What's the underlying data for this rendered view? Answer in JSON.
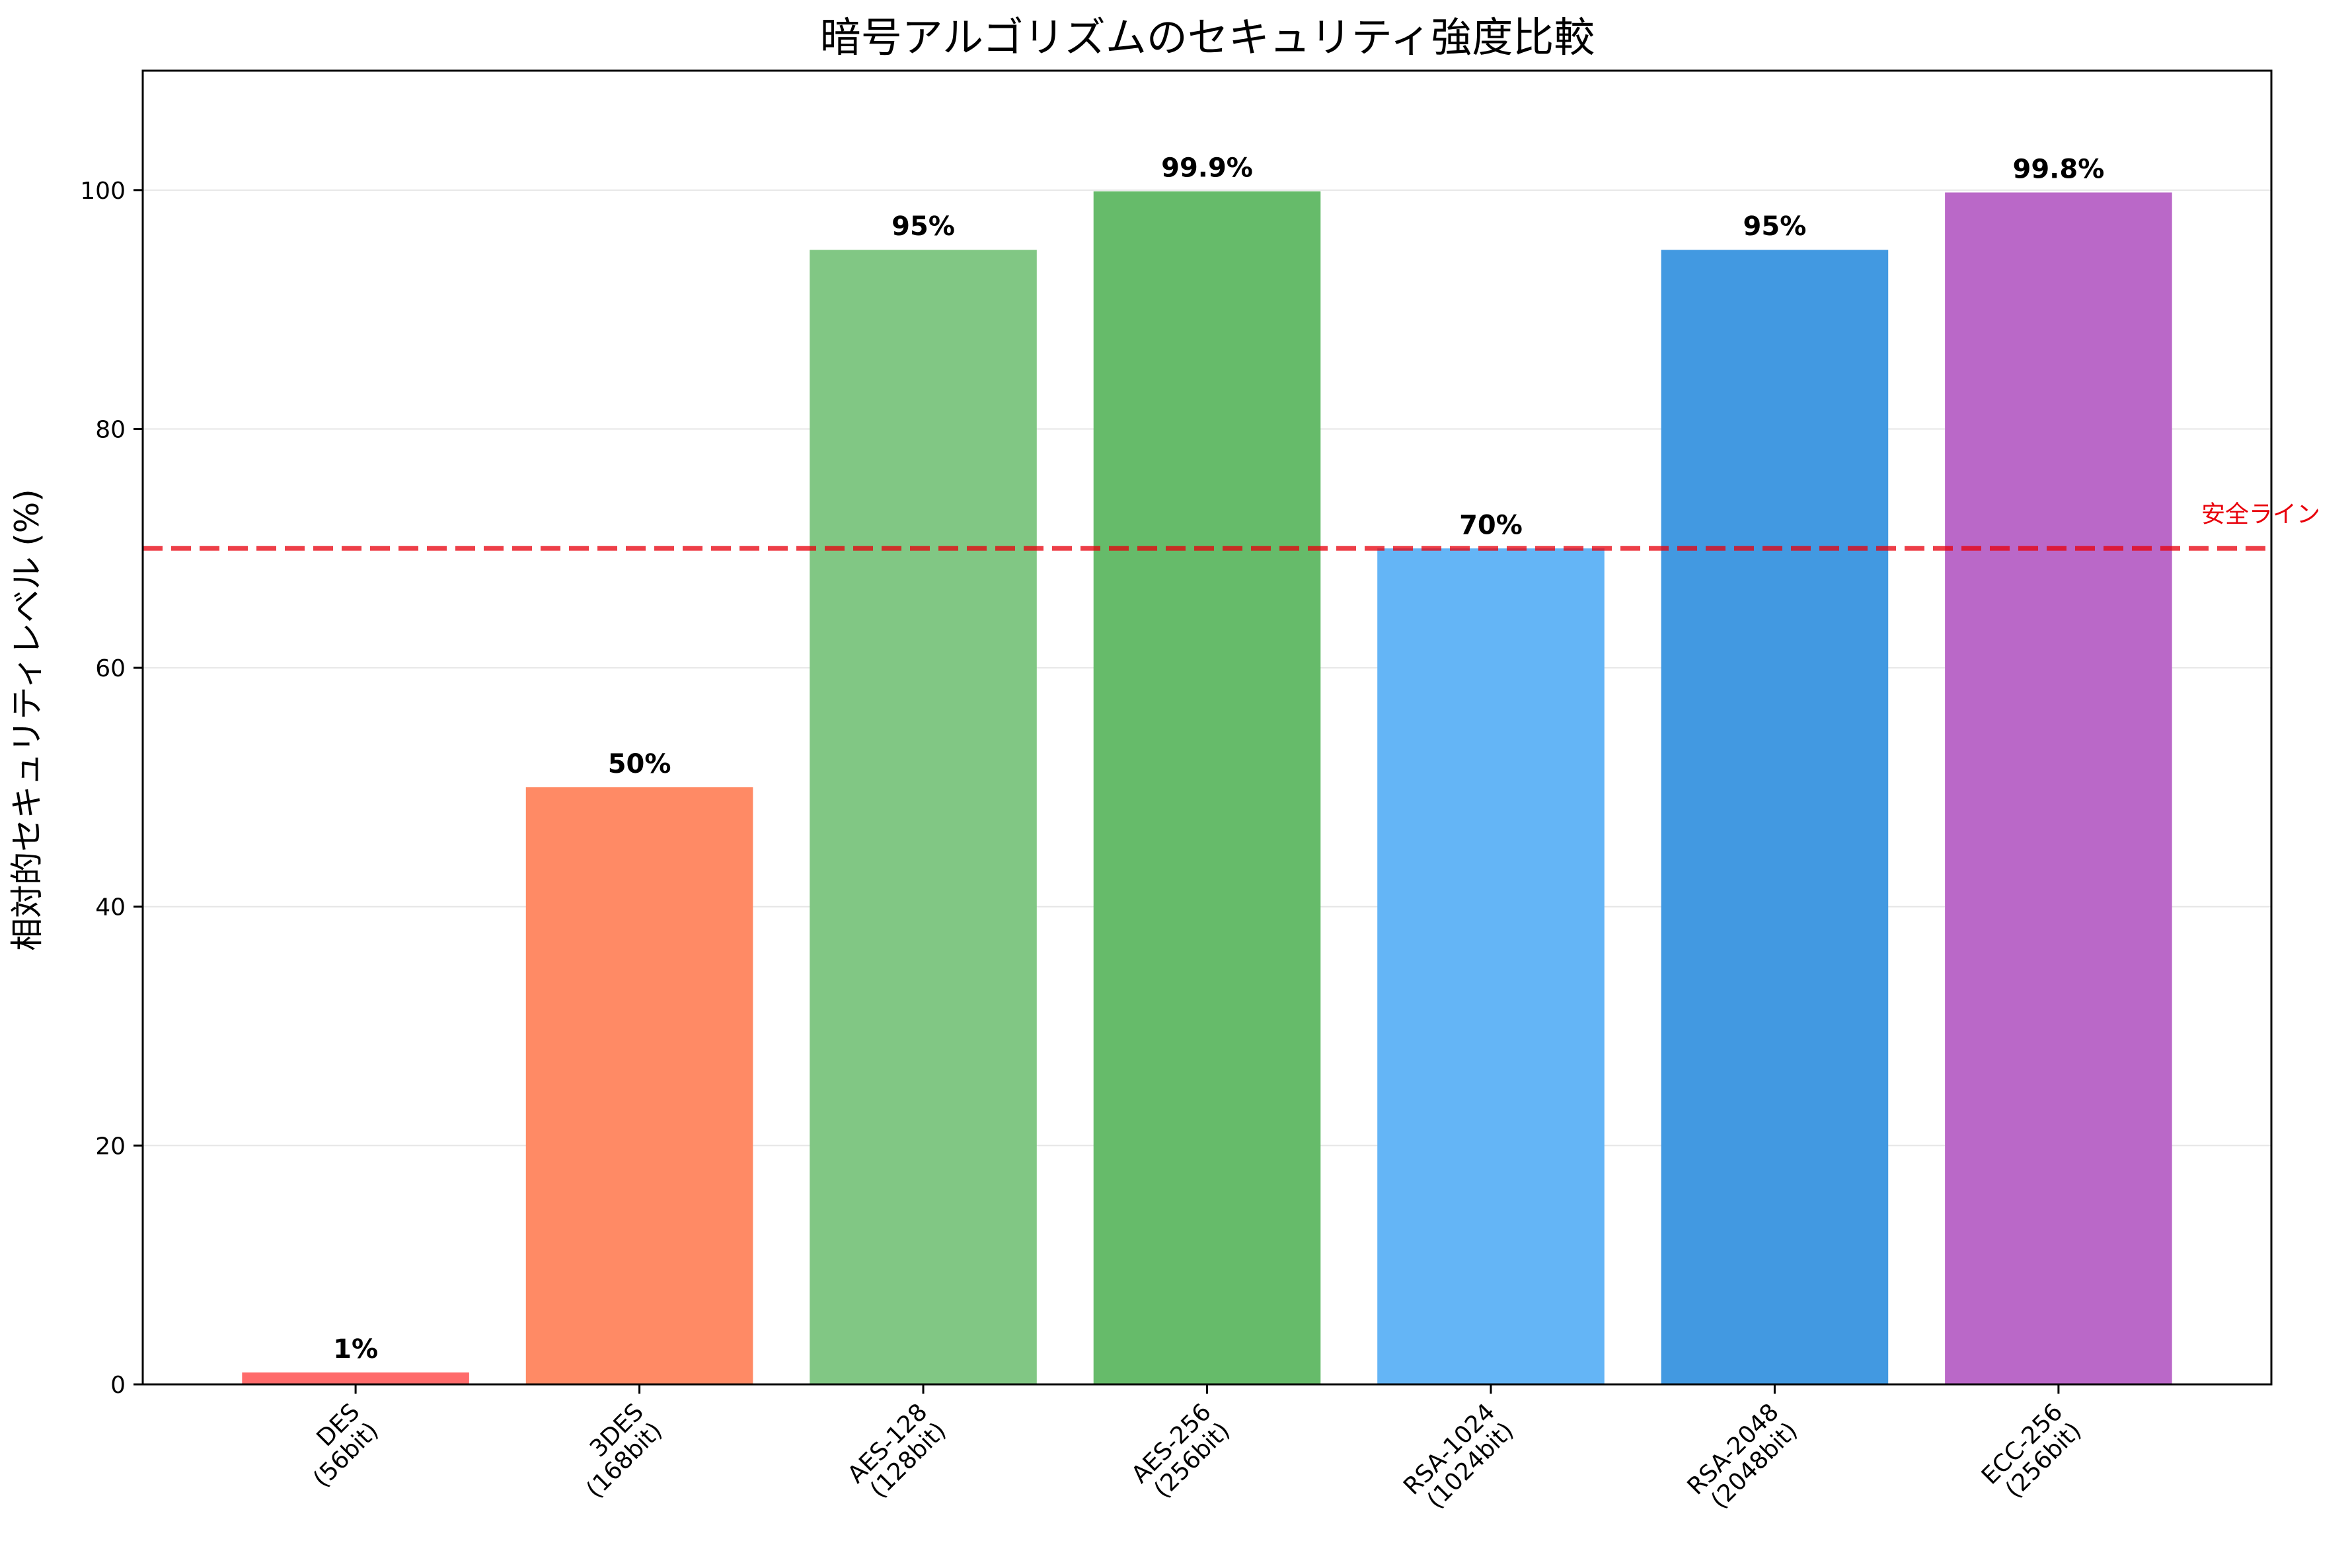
{
  "chart_data": {
    "type": "bar",
    "title": "暗号アルゴリズムのセキュリティ強度比較",
    "xlabel": "",
    "ylabel": "相対的セキュリティレベル (%)",
    "ylim": [
      0,
      110
    ],
    "yticks": [
      0,
      20,
      40,
      60,
      80,
      100
    ],
    "grid": "horizontal",
    "categories": [
      [
        "DES",
        "(56bit)"
      ],
      [
        "3DES",
        "(168bit)"
      ],
      [
        "AES-128",
        "(128bit)"
      ],
      [
        "AES-256",
        "(256bit)"
      ],
      [
        "RSA-1024",
        "(1024bit)"
      ],
      [
        "RSA-2048",
        "(2048bit)"
      ],
      [
        "ECC-256",
        "(256bit)"
      ]
    ],
    "values": [
      1,
      50,
      95,
      99.9,
      70,
      95,
      99.8
    ],
    "value_labels": [
      "1%",
      "50%",
      "95%",
      "99.9%",
      "70%",
      "95%",
      "99.8%"
    ],
    "colors": [
      "#ff6b6b",
      "#ff8a65",
      "#81c784",
      "#66bb6a",
      "#64b5f6",
      "#4299e1",
      "#ba68c8"
    ],
    "reference_line": {
      "value": 70,
      "label": "安全ライン",
      "color": "#e8000b",
      "style": "dashed"
    }
  }
}
